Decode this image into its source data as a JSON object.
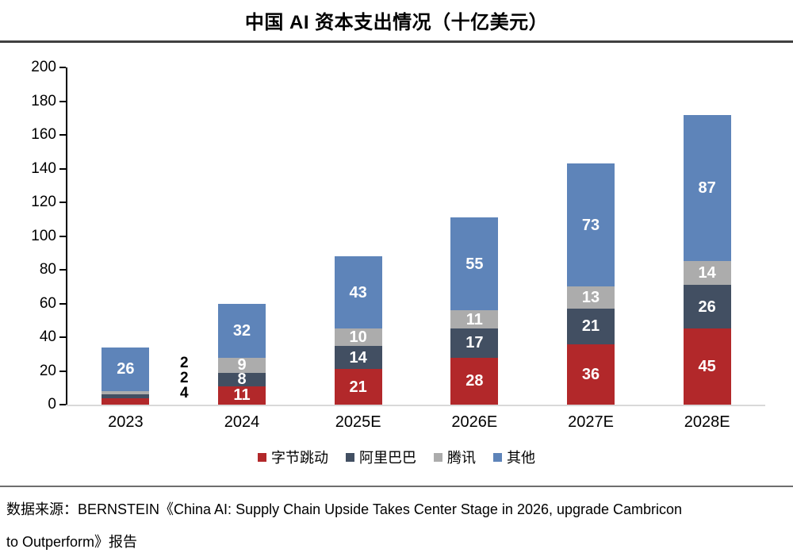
{
  "chart_data": {
    "type": "bar",
    "stacked": true,
    "title": "中国 AI 资本支出情况（十亿美元）",
    "categories": [
      "2023",
      "2024",
      "2025E",
      "2026E",
      "2027E",
      "2028E"
    ],
    "series": [
      {
        "name": "字节跳动",
        "color": "#b2282a",
        "values": [
          4,
          11,
          21,
          28,
          36,
          45
        ]
      },
      {
        "name": "阿里巴巴",
        "color": "#424f62",
        "values": [
          2,
          8,
          14,
          17,
          21,
          26
        ]
      },
      {
        "name": "腾讯",
        "color": "#acacac",
        "values": [
          2,
          9,
          10,
          11,
          13,
          14
        ]
      },
      {
        "name": "其他",
        "color": "#5e84b9",
        "values": [
          26,
          32,
          43,
          55,
          73,
          87
        ]
      }
    ],
    "totals": [
      34,
      60,
      88,
      111,
      143,
      172
    ],
    "xlabel": "",
    "ylabel": "",
    "ylim": [
      0,
      200
    ],
    "ytick_step": 20,
    "grid": false,
    "legend_position": "bottom",
    "value_labels": "white bold inside segments; small 2023 segments (2,2,4) labeled in black outside right of bar"
  },
  "source": {
    "line1": "数据来源：BERNSTEIN《China AI: Supply Chain Upside Takes Center Stage in 2026, upgrade Cambricon",
    "line2": "to Outperform》报告"
  },
  "colors": {
    "top_rule": "#3f3f3f",
    "bottom_rule": "#6e6e6e",
    "axis": "#000000",
    "baseline": "#d9d9d9",
    "background": "#ffffff"
  }
}
